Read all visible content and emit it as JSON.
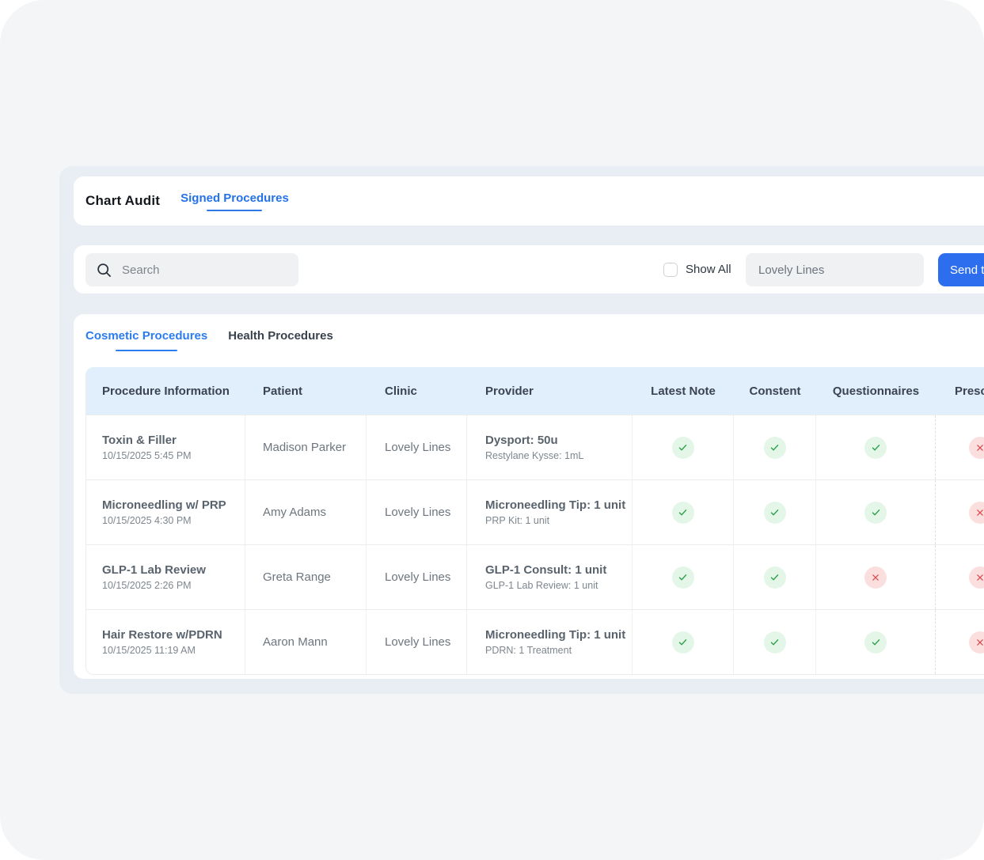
{
  "header": {
    "title": "Chart Audit",
    "nav_link": "Signed Procedures"
  },
  "toolbar": {
    "search_placeholder": "Search",
    "show_all_label": "Show All",
    "show_all_checked": false,
    "clinic_filter_value": "Lovely Lines",
    "send_button_label": "Send t"
  },
  "tabs": [
    {
      "label": "Cosmetic Procedures",
      "active": true
    },
    {
      "label": "Health Procedures",
      "active": false
    }
  ],
  "table": {
    "columns": [
      {
        "label": "Procedure Information"
      },
      {
        "label": "Patient"
      },
      {
        "label": "Clinic"
      },
      {
        "label": "Provider"
      },
      {
        "label": "Latest Note"
      },
      {
        "label": "Constent"
      },
      {
        "label": "Questionnaires"
      },
      {
        "label": "Prescr"
      }
    ],
    "rows": [
      {
        "procedure": "Toxin & Filler",
        "datetime": "10/15/2025 5:45 PM",
        "patient": "Madison Parker",
        "clinic": "Lovely Lines",
        "provider_line1": "Dysport: 50u",
        "provider_line2": "Restylane Kysse: 1mL",
        "latest_note": "check",
        "constent": "check",
        "questionnaires": "check",
        "prescriptions": "cross"
      },
      {
        "procedure": "Microneedling w/ PRP",
        "datetime": "10/15/2025 4:30 PM",
        "patient": "Amy Adams",
        "clinic": "Lovely Lines",
        "provider_line1": "Microneedling Tip: 1 unit",
        "provider_line2": "PRP Kit: 1 unit",
        "latest_note": "check",
        "constent": "check",
        "questionnaires": "check",
        "prescriptions": "cross"
      },
      {
        "procedure": "GLP-1 Lab Review",
        "datetime": "10/15/2025 2:26 PM",
        "patient": "Greta Range",
        "clinic": "Lovely Lines",
        "provider_line1": "GLP-1 Consult: 1 unit",
        "provider_line2": "GLP-1 Lab Review: 1 unit",
        "latest_note": "check",
        "constent": "check",
        "questionnaires": "cross",
        "prescriptions": "cross"
      },
      {
        "procedure": "Hair Restore w/PDRN",
        "datetime": "10/15/2025 11:19 AM",
        "patient": "Aaron Mann",
        "clinic": "Lovely Lines",
        "provider_line1": "Microneedling Tip: 1 unit",
        "provider_line2": "PDRN: 1 Treatment",
        "latest_note": "check",
        "constent": "check",
        "questionnaires": "check",
        "prescriptions": "cross"
      }
    ]
  },
  "icons": {
    "search": "search-icon",
    "status_ok": "check-icon",
    "status_fail": "cross-icon"
  },
  "colors": {
    "accent_blue": "#2472e8",
    "tab_blue": "#2b7cf0",
    "button_blue": "#2d6eef",
    "success_green": "#2ba14a",
    "success_bg": "#e4f6e7",
    "error_red": "#d9464a",
    "error_bg": "#fbdfdf",
    "table_header_bg": "#e0effb",
    "panel_bg": "#e9eef5",
    "page_bg": "#f4f5f6"
  }
}
